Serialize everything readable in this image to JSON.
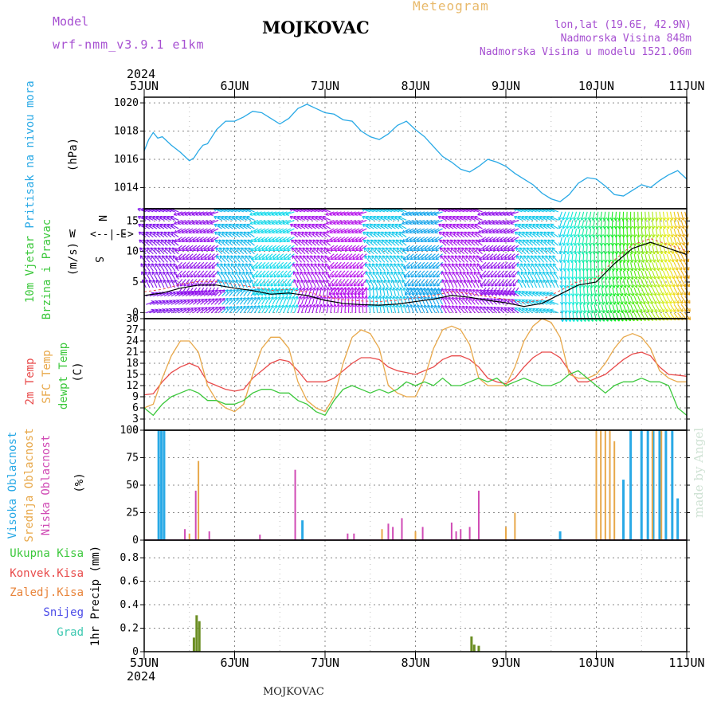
{
  "header": {
    "model_label": "Model",
    "model_name": "wrf-nmm_v3.9.1 e1km",
    "station": "MOJKOVAC",
    "title": "Meteogram",
    "coords": "lon,lat (19.6E, 42.9N)",
    "elevation": "Nadmorska Visina 848m",
    "model_elevation": "Nadmorska Visina u modelu 1521.06m",
    "credit": "made by Angel",
    "footer_station": "MOJKOVAC"
  },
  "colors": {
    "pressure": "#29a9e6",
    "temp2m": "#e84a4a",
    "sfc": "#e8a84a",
    "dewpt": "#3cc83c",
    "high_cloud": "#29a9e6",
    "mid_cloud": "#e8a84a",
    "low_cloud": "#d04bb5",
    "precip_total": "#6b8e23",
    "model_label": "#a64fd1"
  },
  "chart_data": [
    {
      "type": "line",
      "id": "pressure",
      "ylabel_lines": [
        "Pritisak na nivou mora",
        "(hPa)"
      ],
      "ylim": [
        1012.5,
        1020.4
      ],
      "yticks": [
        1014,
        1016,
        1018,
        1020
      ],
      "x_days": [
        "5JUN",
        "6JUN",
        "7JUN",
        "8JUN",
        "9JUN",
        "10JUN",
        "11JUN"
      ],
      "year": "2024",
      "series": [
        {
          "name": "Pritisak na nivou mora",
          "x": [
            0,
            0.05,
            0.1,
            0.15,
            0.2,
            0.3,
            0.4,
            0.5,
            0.55,
            0.6,
            0.65,
            0.7,
            0.8,
            0.9,
            1.0,
            1.1,
            1.2,
            1.3,
            1.4,
            1.5,
            1.6,
            1.7,
            1.8,
            1.9,
            2.0,
            2.1,
            2.2,
            2.3,
            2.4,
            2.5,
            2.6,
            2.7,
            2.8,
            2.9,
            3.0,
            3.1,
            3.2,
            3.3,
            3.4,
            3.5,
            3.6,
            3.7,
            3.8,
            3.9,
            4.0,
            4.1,
            4.2,
            4.3,
            4.4,
            4.5,
            4.6,
            4.7,
            4.8,
            4.9,
            5.0,
            5.1,
            5.2,
            5.3,
            5.4,
            5.5,
            5.6,
            5.7,
            5.8,
            5.9,
            6.0
          ],
          "values": [
            1016.6,
            1017.4,
            1017.9,
            1017.5,
            1017.6,
            1017.0,
            1016.5,
            1015.9,
            1016.1,
            1016.6,
            1017.0,
            1017.1,
            1018.1,
            1018.7,
            1018.7,
            1019.0,
            1019.4,
            1019.3,
            1018.9,
            1018.5,
            1018.9,
            1019.6,
            1019.9,
            1019.6,
            1019.3,
            1019.2,
            1018.8,
            1018.7,
            1018.0,
            1017.6,
            1017.4,
            1017.8,
            1018.4,
            1018.7,
            1018.1,
            1017.6,
            1016.9,
            1016.2,
            1015.8,
            1015.3,
            1015.1,
            1015.5,
            1016.0,
            1015.8,
            1015.5,
            1015.0,
            1014.6,
            1014.2,
            1013.6,
            1013.2,
            1013.0,
            1013.5,
            1014.3,
            1014.7,
            1014.6,
            1014.1,
            1013.5,
            1013.4,
            1013.8,
            1014.2,
            1014.0,
            1014.5,
            1014.9,
            1015.2,
            1014.6
          ]
        }
      ]
    },
    {
      "type": "line",
      "id": "wind",
      "ylabel_lines": [
        "10m Vjetar",
        "Brzina i Pravac",
        "(m/s)"
      ],
      "compass": {
        "n": "N",
        "s": "S",
        "e": "E",
        "w": "W"
      },
      "ylim": [
        -1,
        17
      ],
      "yticks": [
        0,
        5,
        10,
        15
      ],
      "series": [
        {
          "name": "10m Vjetar",
          "x": [
            0,
            0.2,
            0.4,
            0.6,
            0.8,
            1.0,
            1.2,
            1.4,
            1.6,
            1.8,
            2.0,
            2.2,
            2.4,
            2.6,
            2.8,
            3.0,
            3.2,
            3.4,
            3.6,
            3.8,
            4.0,
            4.2,
            4.4,
            4.6,
            4.8,
            5.0,
            5.2,
            5.4,
            5.6,
            5.8,
            6.0
          ],
          "values": [
            2.8,
            3.2,
            4.0,
            4.5,
            4.5,
            4.0,
            3.6,
            3.0,
            3.2,
            2.8,
            2.0,
            1.5,
            1.3,
            1.2,
            1.4,
            1.8,
            2.2,
            2.8,
            2.5,
            2.0,
            1.6,
            1.0,
            1.5,
            3.0,
            4.5,
            5.0,
            8.0,
            10.5,
            11.5,
            10.5,
            9.5
          ]
        }
      ]
    },
    {
      "type": "line",
      "id": "temperature",
      "ylabel_lines": [
        "2m Temp",
        "SFC Temp",
        "dewpt Temp",
        "(C)"
      ],
      "ylim": [
        0,
        30
      ],
      "yticks": [
        0,
        3,
        6,
        9,
        12,
        15,
        18,
        21,
        24,
        27,
        30
      ],
      "series": [
        {
          "name": "2m Temp",
          "x": [
            0,
            0.1,
            0.2,
            0.3,
            0.4,
            0.5,
            0.6,
            0.7,
            0.8,
            0.9,
            1.0,
            1.1,
            1.2,
            1.3,
            1.4,
            1.5,
            1.6,
            1.7,
            1.8,
            1.9,
            2.0,
            2.1,
            2.2,
            2.3,
            2.4,
            2.5,
            2.6,
            2.7,
            2.8,
            2.9,
            3.0,
            3.1,
            3.2,
            3.3,
            3.4,
            3.5,
            3.6,
            3.7,
            3.8,
            3.9,
            4.0,
            4.1,
            4.2,
            4.3,
            4.4,
            4.5,
            4.6,
            4.7,
            4.8,
            4.9,
            5.0,
            5.1,
            5.2,
            5.3,
            5.4,
            5.5,
            5.6,
            5.7,
            5.8,
            5.9,
            6.0
          ],
          "values": [
            9.5,
            9.8,
            13,
            15.5,
            17,
            18,
            17,
            13,
            12,
            11,
            10.5,
            11,
            14,
            16,
            18,
            19,
            18.5,
            16,
            13,
            13,
            13,
            14,
            16,
            18,
            19.5,
            19.5,
            19,
            17,
            16,
            15.5,
            15,
            16,
            17,
            19,
            20,
            20,
            19,
            17,
            14,
            13,
            12.5,
            14,
            17,
            19.5,
            21,
            21,
            19.5,
            16,
            13,
            13,
            14,
            15,
            17,
            19,
            20.5,
            21,
            20,
            17,
            15,
            14.8,
            14.5
          ]
        },
        {
          "name": "SFC Temp",
          "x": [
            0,
            0.1,
            0.2,
            0.3,
            0.4,
            0.5,
            0.6,
            0.7,
            0.8,
            0.9,
            1.0,
            1.1,
            1.2,
            1.3,
            1.4,
            1.5,
            1.6,
            1.7,
            1.8,
            1.9,
            2.0,
            2.1,
            2.2,
            2.3,
            2.4,
            2.5,
            2.6,
            2.7,
            2.8,
            2.9,
            3.0,
            3.1,
            3.2,
            3.3,
            3.4,
            3.5,
            3.6,
            3.7,
            3.8,
            3.9,
            4.0,
            4.1,
            4.2,
            4.3,
            4.4,
            4.5,
            4.6,
            4.7,
            4.8,
            4.9,
            5.0,
            5.1,
            5.2,
            5.3,
            5.4,
            5.5,
            5.6,
            5.7,
            5.8,
            5.9,
            6.0
          ],
          "values": [
            6,
            7,
            14,
            20,
            24,
            24,
            21,
            12,
            8,
            6,
            5,
            7,
            15,
            22,
            25,
            25,
            22,
            13,
            8,
            6,
            5,
            9,
            18,
            25,
            27,
            26,
            22,
            12,
            10,
            9,
            9,
            14,
            22,
            27,
            28,
            27,
            23,
            14,
            12,
            12,
            12,
            17,
            24,
            28,
            30,
            29,
            25,
            15,
            14,
            14,
            15,
            18,
            22,
            25,
            26,
            25,
            22,
            16,
            14,
            13,
            13
          ]
        },
        {
          "name": "dewpt Temp",
          "x": [
            0,
            0.1,
            0.2,
            0.3,
            0.4,
            0.5,
            0.6,
            0.7,
            0.8,
            0.9,
            1.0,
            1.1,
            1.2,
            1.3,
            1.4,
            1.5,
            1.6,
            1.7,
            1.8,
            1.9,
            2.0,
            2.1,
            2.2,
            2.3,
            2.4,
            2.5,
            2.6,
            2.7,
            2.8,
            2.9,
            3.0,
            3.1,
            3.2,
            3.3,
            3.4,
            3.5,
            3.6,
            3.7,
            3.8,
            3.9,
            4.0,
            4.1,
            4.2,
            4.3,
            4.4,
            4.5,
            4.6,
            4.7,
            4.8,
            4.9,
            5.0,
            5.1,
            5.2,
            5.3,
            5.4,
            5.5,
            5.6,
            5.7,
            5.8,
            5.9,
            6.0
          ],
          "values": [
            6,
            4,
            7,
            9,
            10,
            11,
            10,
            8,
            8,
            7,
            7,
            8,
            10,
            11,
            11,
            10,
            10,
            8,
            7,
            5,
            4,
            8,
            11,
            12,
            11,
            10,
            11,
            10,
            11,
            13,
            12,
            13,
            12,
            14,
            12,
            12,
            13,
            14,
            13,
            14,
            12,
            13,
            14,
            13,
            12,
            12,
            13,
            15,
            16,
            14,
            12,
            10,
            12,
            13,
            13,
            14,
            13,
            13,
            12,
            6,
            4
          ]
        }
      ]
    },
    {
      "type": "bar",
      "id": "clouds",
      "ylabel_lines": [
        "Visoka Oblacnost",
        "Srednja Oblacnost",
        "Niska Oblacnost",
        "(%)"
      ],
      "ylim": [
        0,
        100
      ],
      "yticks": [
        0,
        25,
        50,
        75,
        100
      ],
      "series": [
        {
          "name": "Visoka Oblacnost",
          "x": [
            0.16,
            0.19,
            0.22,
            1.75,
            4.6,
            5.3,
            5.38,
            5.5,
            5.57,
            5.63,
            5.7,
            5.77,
            5.84,
            5.9
          ],
          "values": [
            100,
            100,
            100,
            18,
            8,
            55,
            100,
            100,
            100,
            100,
            100,
            100,
            100,
            38
          ]
        },
        {
          "name": "Srednja Oblacnost",
          "x": [
            0.5,
            0.6,
            2.63,
            3.0,
            4.0,
            4.1,
            5.0,
            5.05,
            5.1,
            5.15,
            5.2,
            5.62,
            5.72
          ],
          "values": [
            6,
            72,
            10,
            8,
            12,
            25,
            100,
            100,
            100,
            100,
            90,
            100,
            100
          ]
        },
        {
          "name": "Niska Oblacnost",
          "x": [
            0.45,
            0.57,
            0.72,
            1.28,
            1.67,
            2.25,
            2.32,
            2.7,
            2.75,
            2.85,
            3.08,
            3.4,
            3.45,
            3.5,
            3.6,
            3.7
          ],
          "values": [
            10,
            45,
            8,
            5,
            64,
            6,
            6,
            15,
            12,
            20,
            12,
            16,
            8,
            10,
            12,
            45
          ]
        }
      ]
    },
    {
      "type": "bar",
      "id": "precip",
      "ylabel_lines": [
        "1hr Precip (mm)"
      ],
      "legend": [
        "Ukupna Kisa",
        "Konvek.Kisa",
        "Zaledj.Kisa",
        "Snijeg",
        "Grad"
      ],
      "ylim": [
        0,
        0.95
      ],
      "yticks": [
        0,
        0.2,
        0.4,
        0.6,
        0.8
      ],
      "series": [
        {
          "name": "Ukupna Kisa",
          "x": [
            0.55,
            0.58,
            0.61,
            3.62,
            3.65,
            3.7
          ],
          "values": [
            0.12,
            0.31,
            0.26,
            0.13,
            0.06,
            0.05
          ]
        }
      ]
    }
  ]
}
